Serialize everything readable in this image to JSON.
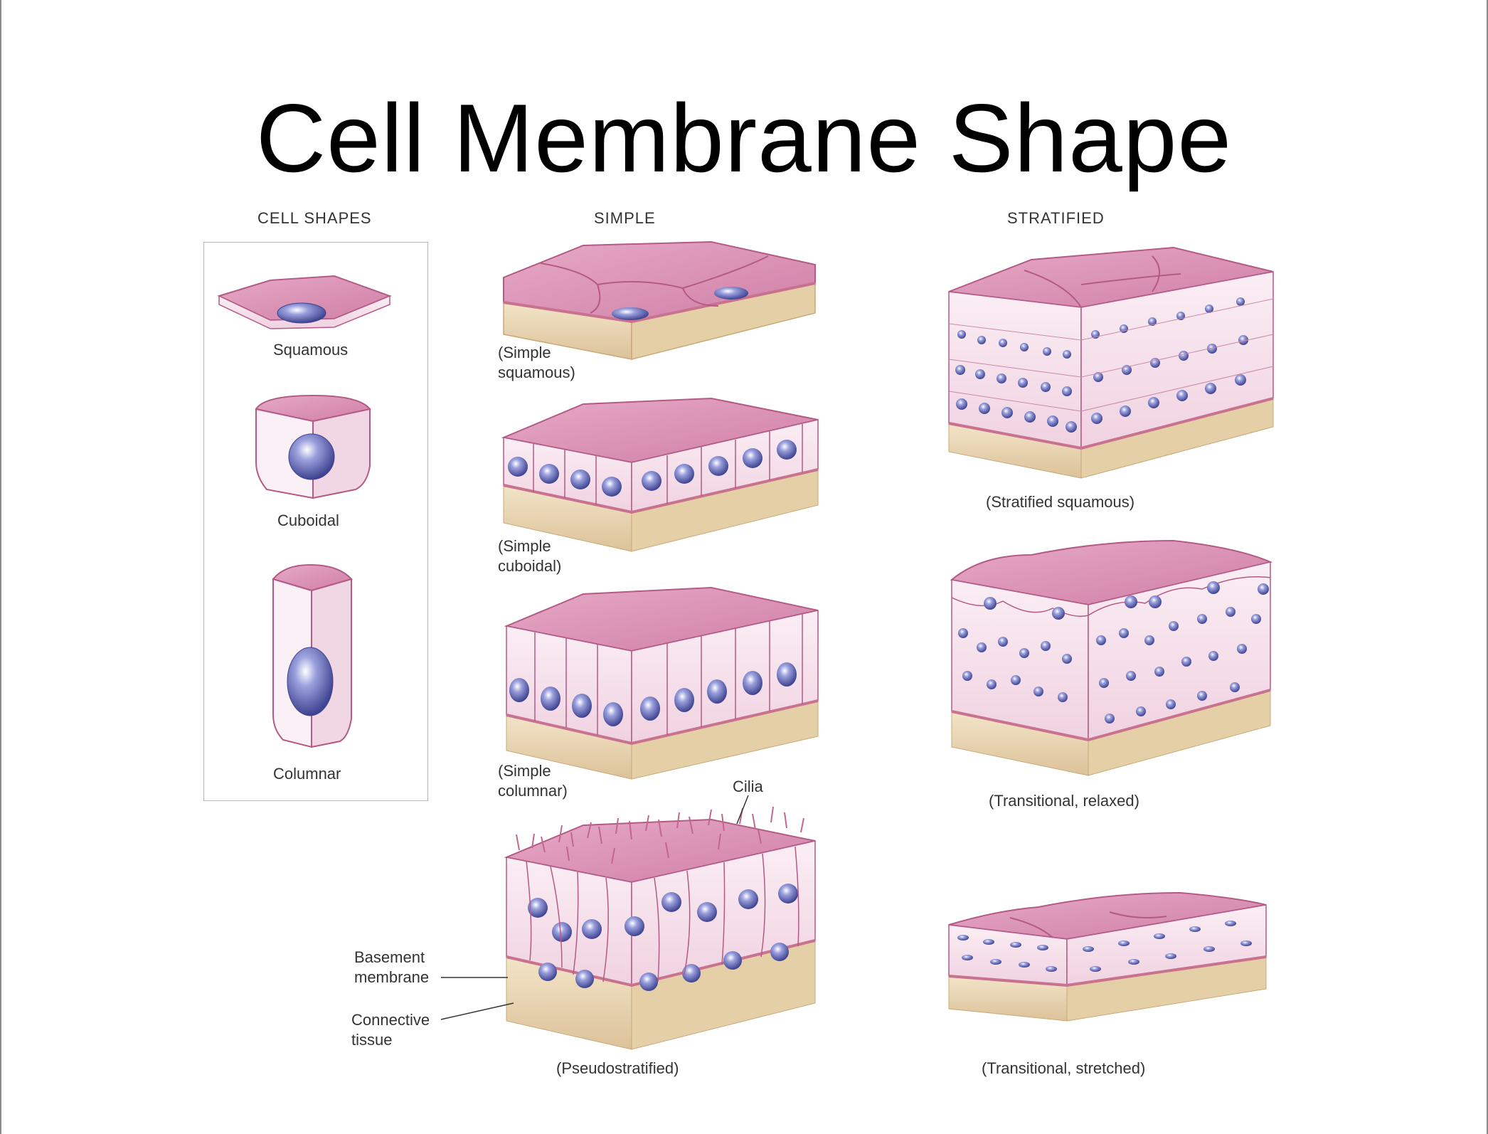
{
  "slide": {
    "title": "Cell Membrane Shape"
  },
  "columns": {
    "cell_shapes": "CELL SHAPES",
    "simple": "SIMPLE",
    "stratified": "STRATIFIED"
  },
  "cell_shapes": {
    "squamous": "Squamous",
    "cuboidal": "Cuboidal",
    "columnar": "Columnar"
  },
  "simple": {
    "squamous_line1": "(Simple",
    "squamous_line2": "squamous)",
    "cuboidal_line1": "(Simple",
    "cuboidal_line2": "cuboidal)",
    "columnar_line1": "(Simple",
    "columnar_line2": "columnar)",
    "pseudostratified": "(Pseudostratified)"
  },
  "stratified": {
    "squamous": "(Stratified squamous)",
    "transitional_relaxed": "(Transitional, relaxed)",
    "transitional_stretched": "(Transitional, stretched)"
  },
  "annotations": {
    "cilia": "Cilia",
    "basement_line1": "Basement",
    "basement_line2": "membrane",
    "connective_line1": "Connective",
    "connective_line2": "tissue"
  },
  "colors": {
    "cell_top": "#d98fb2",
    "cell_side": "#f6e1ec",
    "cell_outline": "#b45a85",
    "nucleus": "#5a5fae",
    "connective": "#ead7b4",
    "connective_dark": "#d8bd8f",
    "basement": "#c9728f"
  }
}
